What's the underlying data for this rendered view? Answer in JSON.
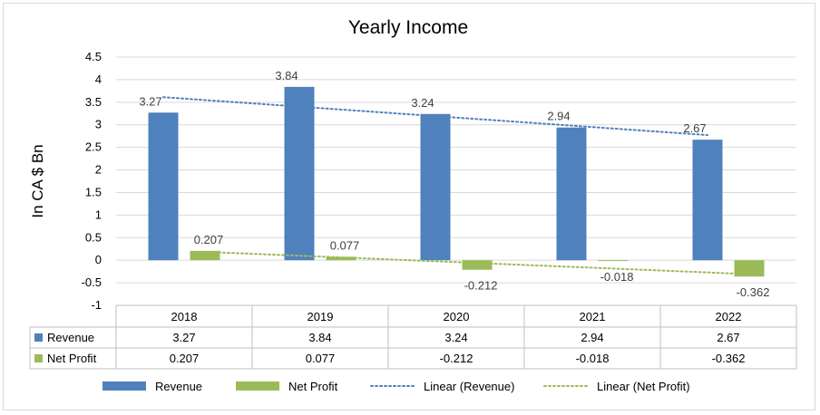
{
  "chart_data": {
    "type": "bar",
    "title": "Yearly Income",
    "ylabel": "In CA $ Bn",
    "xlabel": "",
    "categories": [
      "2018",
      "2019",
      "2020",
      "2021",
      "2022"
    ],
    "ylim": [
      -1,
      4.5
    ],
    "yticks": [
      4.5,
      4,
      3.5,
      3,
      2.5,
      2,
      1.5,
      1,
      0.5,
      0,
      -0.5,
      -1
    ],
    "grid": true,
    "legend_position": "bottom",
    "data_table": true,
    "series": [
      {
        "name": "Revenue",
        "values": [
          3.27,
          3.84,
          3.24,
          2.94,
          2.67
        ],
        "labels": [
          "3.27",
          "3.84",
          "3.24",
          "2.94",
          "2.67"
        ],
        "color": "#4f81bd"
      },
      {
        "name": "Net Profit",
        "values": [
          0.207,
          0.077,
          -0.212,
          -0.018,
          -0.362
        ],
        "labels": [
          "0.207",
          "0.077",
          "-0.212",
          "-0.018",
          "-0.362"
        ],
        "color": "#9bbb59"
      }
    ],
    "trendlines": [
      {
        "name": "Linear (Revenue)",
        "series": "Revenue",
        "type": "linear",
        "color": "#4f81bd"
      },
      {
        "name": "Linear (Net Profit)",
        "series": "Net Profit",
        "type": "linear",
        "color": "#9bbb59"
      }
    ]
  }
}
